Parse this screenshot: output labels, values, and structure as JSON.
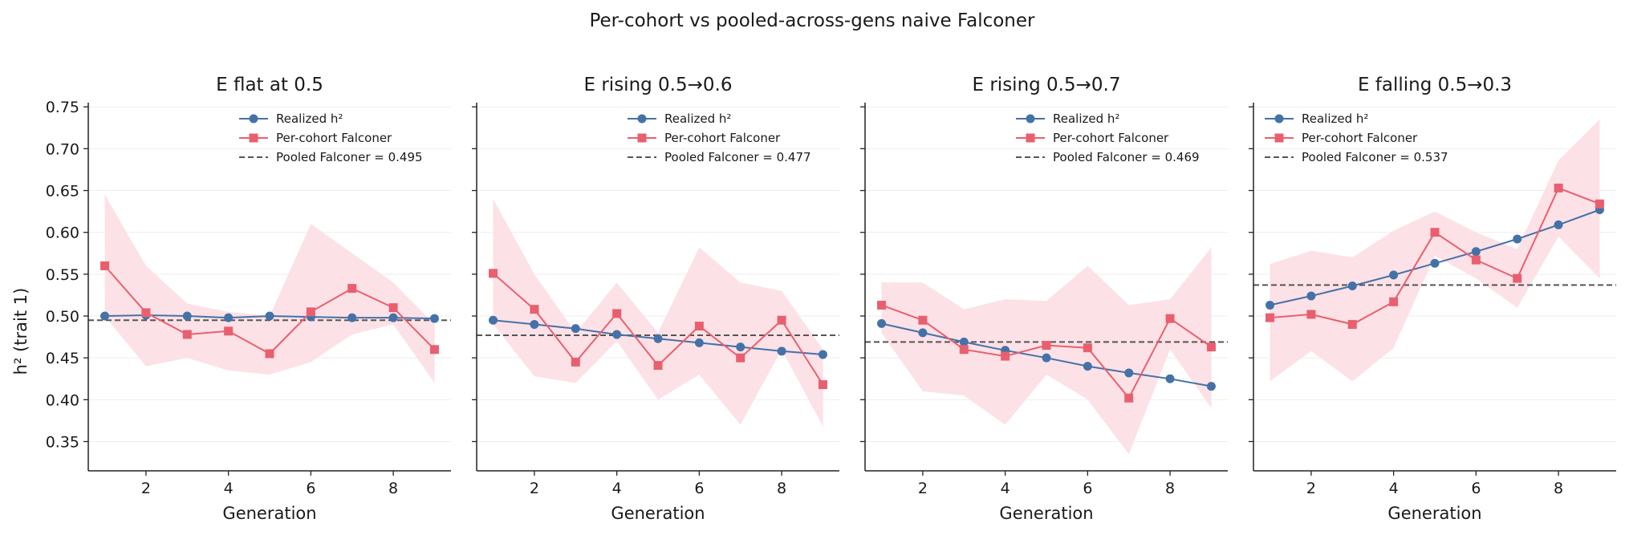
{
  "chart_data": {
    "suptitle": "Per-cohort vs pooled-across-gens naive Falconer",
    "shared_ylabel": "h² (trait 1)",
    "shared_xlabel": "Generation",
    "xlim": [
      0.6,
      9.4
    ],
    "ylim": [
      0.315,
      0.755
    ],
    "xticks": [
      2,
      4,
      6,
      8
    ],
    "yticks": [
      0.35,
      0.4,
      0.45,
      0.5,
      0.55,
      0.6,
      0.65,
      0.7,
      0.75
    ],
    "ytick_labels": [
      "0.35",
      "0.40",
      "0.45",
      "0.50",
      "0.55",
      "0.60",
      "0.65",
      "0.70",
      "0.75"
    ],
    "colors": {
      "realized": "#4472a8",
      "falconer": "#e8606f",
      "band": "#fce1e6",
      "pooled": "#555555"
    },
    "panels": [
      {
        "type": "line",
        "title": "E flat at 0.5",
        "legend_position": "top-right",
        "x": [
          1,
          2,
          3,
          4,
          5,
          6,
          7,
          8,
          9
        ],
        "series": [
          {
            "name": "Realized h²",
            "marker": "circle",
            "values": [
              0.5,
              0.501,
              0.5,
              0.498,
              0.5,
              0.499,
              0.498,
              0.498,
              0.497
            ]
          },
          {
            "name": "Per-cohort Falconer",
            "marker": "square",
            "values": [
              0.56,
              0.504,
              0.478,
              0.482,
              0.455,
              0.505,
              0.533,
              0.51,
              0.46
            ],
            "band_low": [
              0.5,
              0.44,
              0.45,
              0.435,
              0.43,
              0.445,
              0.478,
              0.49,
              0.42
            ],
            "band_high": [
              0.645,
              0.56,
              0.515,
              0.505,
              0.5,
              0.61,
              0.575,
              0.54,
              0.49
            ]
          }
        ],
        "pooled": {
          "label": "Pooled Falconer = 0.495",
          "value": 0.495
        }
      },
      {
        "type": "line",
        "title": "E rising 0.5→0.6",
        "legend_position": "top-right",
        "x": [
          1,
          2,
          3,
          4,
          5,
          6,
          7,
          8,
          9
        ],
        "series": [
          {
            "name": "Realized h²",
            "marker": "circle",
            "values": [
              0.495,
              0.49,
              0.485,
              0.478,
              0.473,
              0.468,
              0.463,
              0.458,
              0.454
            ]
          },
          {
            "name": "Per-cohort Falconer",
            "marker": "square",
            "values": [
              0.551,
              0.508,
              0.445,
              0.503,
              0.441,
              0.488,
              0.45,
              0.495,
              0.418
            ],
            "band_low": [
              0.49,
              0.428,
              0.42,
              0.47,
              0.4,
              0.43,
              0.37,
              0.46,
              0.368
            ],
            "band_high": [
              0.64,
              0.55,
              0.48,
              0.54,
              0.48,
              0.582,
              0.54,
              0.53,
              0.46
            ]
          }
        ],
        "pooled": {
          "label": "Pooled Falconer = 0.477",
          "value": 0.477
        }
      },
      {
        "type": "line",
        "title": "E rising 0.5→0.7",
        "legend_position": "top-right",
        "x": [
          1,
          2,
          3,
          4,
          5,
          6,
          7,
          8,
          9
        ],
        "series": [
          {
            "name": "Realized h²",
            "marker": "circle",
            "values": [
              0.491,
              0.48,
              0.469,
              0.459,
              0.45,
              0.44,
              0.432,
              0.425,
              0.416
            ]
          },
          {
            "name": "Per-cohort Falconer",
            "marker": "square",
            "values": [
              0.513,
              0.495,
              0.46,
              0.452,
              0.465,
              0.462,
              0.402,
              0.497,
              0.463
            ],
            "band_low": [
              0.48,
              0.41,
              0.405,
              0.37,
              0.43,
              0.4,
              0.335,
              0.46,
              0.39
            ],
            "band_high": [
              0.54,
              0.54,
              0.508,
              0.52,
              0.518,
              0.56,
              0.513,
              0.52,
              0.582
            ]
          }
        ],
        "pooled": {
          "label": "Pooled Falconer = 0.469",
          "value": 0.469
        }
      },
      {
        "type": "line",
        "title": "E falling 0.5→0.3",
        "legend_position": "top-left",
        "x": [
          1,
          2,
          3,
          4,
          5,
          6,
          7,
          8,
          9
        ],
        "series": [
          {
            "name": "Realized h²",
            "marker": "circle",
            "values": [
              0.513,
              0.524,
              0.536,
              0.549,
              0.563,
              0.577,
              0.592,
              0.609,
              0.627
            ]
          },
          {
            "name": "Per-cohort Falconer",
            "marker": "square",
            "values": [
              0.498,
              0.502,
              0.49,
              0.517,
              0.6,
              0.567,
              0.545,
              0.653,
              0.634
            ],
            "band_low": [
              0.422,
              0.458,
              0.422,
              0.462,
              0.572,
              0.545,
              0.51,
              0.595,
              0.545
            ],
            "band_high": [
              0.562,
              0.578,
              0.57,
              0.602,
              0.625,
              0.6,
              0.58,
              0.686,
              0.735
            ]
          }
        ],
        "pooled": {
          "label": "Pooled Falconer = 0.537",
          "value": 0.537
        }
      }
    ]
  }
}
